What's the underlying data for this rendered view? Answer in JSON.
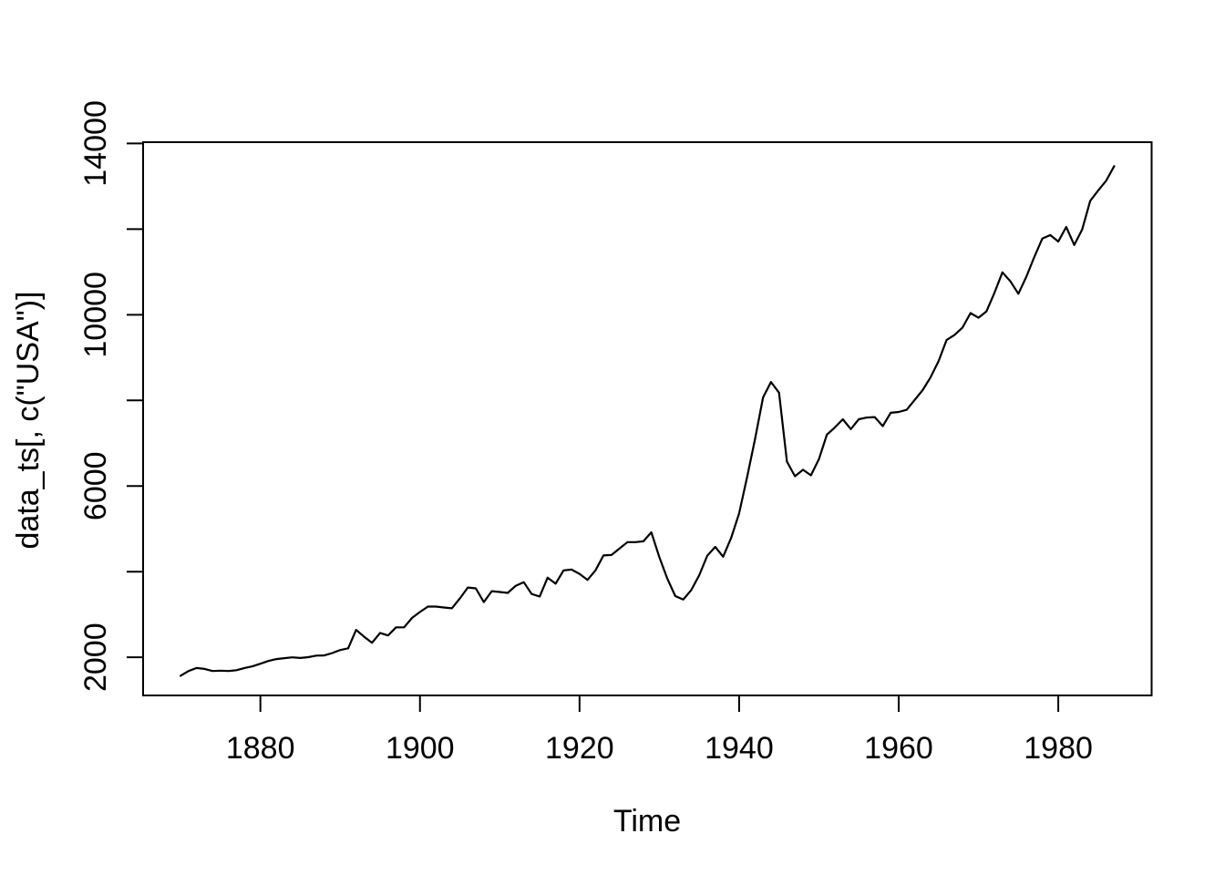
{
  "figure": {
    "background_color": "#ffffff",
    "foreground_color": "#000000"
  },
  "chart_data": {
    "type": "line",
    "title": "",
    "xlabel": "Time",
    "ylabel": "data_ts[, c(\"USA\")]",
    "legend": "none",
    "grid": false,
    "line_color": "#000000",
    "background_color": "#ffffff",
    "xlim": [
      1865.3,
      1991.7
    ],
    "ylim": [
      1110,
      14030
    ],
    "x_ticks": [
      1880,
      1900,
      1920,
      1940,
      1960,
      1980
    ],
    "y_ticks_labeled": [
      2000,
      6000,
      10000,
      14000
    ],
    "y_ticks_unlabeled": [
      4000,
      8000,
      12000
    ],
    "series": [
      {
        "name": "USA",
        "x": [
          1870,
          1871,
          1872,
          1873,
          1874,
          1875,
          1876,
          1877,
          1878,
          1879,
          1880,
          1881,
          1882,
          1883,
          1884,
          1885,
          1886,
          1887,
          1888,
          1889,
          1890,
          1891,
          1892,
          1893,
          1894,
          1895,
          1896,
          1897,
          1898,
          1899,
          1900,
          1901,
          1902,
          1903,
          1904,
          1905,
          1906,
          1907,
          1908,
          1909,
          1910,
          1911,
          1912,
          1913,
          1914,
          1915,
          1916,
          1917,
          1918,
          1919,
          1920,
          1921,
          1922,
          1923,
          1924,
          1925,
          1926,
          1927,
          1928,
          1929,
          1930,
          1931,
          1932,
          1933,
          1934,
          1935,
          1936,
          1937,
          1938,
          1939,
          1940,
          1941,
          1942,
          1943,
          1944,
          1945,
          1946,
          1947,
          1948,
          1949,
          1950,
          1951,
          1952,
          1953,
          1954,
          1955,
          1956,
          1957,
          1958,
          1959,
          1960,
          1961,
          1962,
          1963,
          1964,
          1965,
          1966,
          1967,
          1968,
          1969,
          1970,
          1971,
          1972,
          1973,
          1974,
          1975,
          1976,
          1977,
          1978,
          1979,
          1980,
          1981,
          1982,
          1983,
          1984,
          1985,
          1986,
          1987
        ],
        "values": [
          1570,
          1680,
          1750,
          1730,
          1680,
          1690,
          1680,
          1700,
          1750,
          1790,
          1850,
          1915,
          1960,
          1980,
          2000,
          1985,
          2005,
          2040,
          2045,
          2100,
          2170,
          2210,
          2640,
          2480,
          2340,
          2570,
          2510,
          2700,
          2700,
          2920,
          3060,
          3185,
          3185,
          3165,
          3145,
          3375,
          3630,
          3610,
          3290,
          3545,
          3525,
          3505,
          3670,
          3755,
          3480,
          3420,
          3860,
          3720,
          4030,
          4050,
          3950,
          3810,
          4030,
          4380,
          4390,
          4540,
          4690,
          4690,
          4710,
          4920,
          4340,
          3840,
          3430,
          3350,
          3570,
          3920,
          4370,
          4580,
          4350,
          4790,
          5360,
          6210,
          7100,
          8070,
          8430,
          8180,
          6570,
          6230,
          6380,
          6250,
          6630,
          7200,
          7370,
          7560,
          7330,
          7560,
          7600,
          7610,
          7400,
          7710,
          7730,
          7780,
          8010,
          8240,
          8540,
          8920,
          9410,
          9530,
          9700,
          10040,
          9930,
          10080,
          10510,
          10990,
          10780,
          10490,
          10890,
          11350,
          11780,
          11860,
          11710,
          12050,
          11630,
          11990,
          12660,
          12900,
          13130,
          13470
        ]
      }
    ]
  }
}
